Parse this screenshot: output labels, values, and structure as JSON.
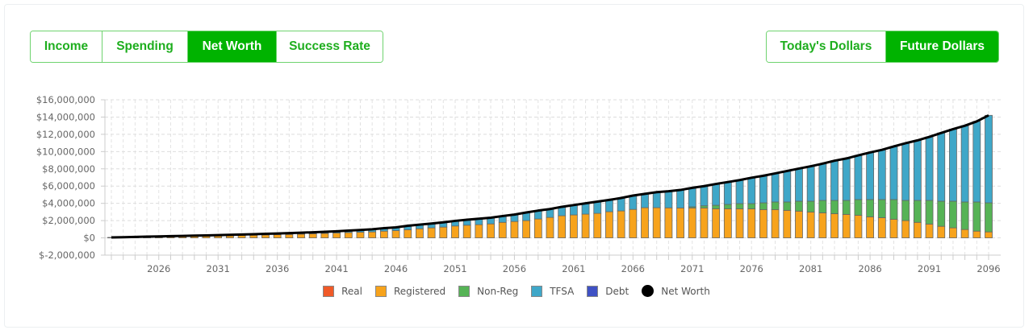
{
  "tabs": {
    "view": [
      {
        "label": "Income",
        "active": false
      },
      {
        "label": "Spending",
        "active": false
      },
      {
        "label": "Net Worth",
        "active": true
      },
      {
        "label": "Success Rate",
        "active": false
      }
    ],
    "currency": [
      {
        "label": "Today's Dollars",
        "active": false
      },
      {
        "label": "Future Dollars",
        "active": true
      }
    ]
  },
  "colors": {
    "accent": "#00b300",
    "Real": "#f05a28",
    "Registered": "#f7a31c",
    "Non-Reg": "#56b356",
    "TFSA": "#3fa7c8",
    "Debt": "#3f51c4",
    "Net Worth": "#000000"
  },
  "chart_data": {
    "type": "bar",
    "stacked": true,
    "title": "",
    "xlabel": "",
    "ylabel": "",
    "ylim": [
      -2000000,
      16000000
    ],
    "yticks": [
      -2000000,
      0,
      2000000,
      4000000,
      6000000,
      8000000,
      10000000,
      12000000,
      14000000,
      16000000
    ],
    "ytick_labels": [
      "$-2,000,000",
      "$0",
      "$2,000,000",
      "$4,000,000",
      "$6,000,000",
      "$8,000,000",
      "$10,000,000",
      "$12,000,000",
      "$14,000,000",
      "$16,000,000"
    ],
    "xrange": [
      2022,
      2096
    ],
    "xtick_labels": [
      "2026",
      "2031",
      "2036",
      "2041",
      "2046",
      "2051",
      "2056",
      "2061",
      "2066",
      "2071",
      "2076",
      "2081",
      "2086",
      "2091",
      "2096"
    ],
    "grid": true,
    "legend_position": "bottom",
    "legend": [
      "Real",
      "Registered",
      "Non-Reg",
      "TFSA",
      "Debt",
      "Net Worth"
    ],
    "series": [
      {
        "name": "Real",
        "type": "bar",
        "values": "all zero"
      },
      {
        "name": "Registered",
        "type": "bar",
        "values": [
          40000,
          60000,
          80000,
          100000,
          120000,
          140000,
          160000,
          180000,
          200000,
          220000,
          250000,
          280000,
          310000,
          340000,
          370000,
          400000,
          440000,
          480000,
          520000,
          560000,
          620000,
          650000,
          690000,
          780000,
          840000,
          940000,
          1060000,
          1160000,
          1250000,
          1380000,
          1470000,
          1530000,
          1620000,
          1800000,
          1900000,
          2000000,
          2190000,
          2370000,
          2560000,
          2660000,
          2750000,
          2840000,
          3030000,
          3120000,
          3300000,
          3500000,
          3500000,
          3480000,
          3470000,
          3470000,
          3470000,
          3370000,
          3370000,
          3370000,
          3370000,
          3280000,
          3280000,
          3190000,
          3100000,
          3000000,
          2900000,
          2800000,
          2720000,
          2620000,
          2440000,
          2340000,
          2160000,
          2000000,
          1800000,
          1600000,
          1340000,
          1160000,
          970000,
          780000,
          690000
        ]
      },
      {
        "name": "Non-Reg",
        "type": "bar",
        "values": [
          0,
          0,
          0,
          0,
          0,
          0,
          0,
          0,
          0,
          0,
          0,
          0,
          0,
          0,
          0,
          0,
          0,
          0,
          0,
          0,
          0,
          0,
          0,
          0,
          0,
          0,
          0,
          0,
          0,
          0,
          0,
          0,
          0,
          0,
          0,
          0,
          0,
          0,
          0,
          0,
          0,
          0,
          0,
          0,
          0,
          0,
          0,
          0,
          0,
          130000,
          250000,
          410000,
          510000,
          600000,
          600000,
          780000,
          880000,
          970000,
          1150000,
          1250000,
          1440000,
          1540000,
          1620000,
          1820000,
          2000000,
          2100000,
          2280000,
          2340000,
          2540000,
          2740000,
          2910000,
          3090000,
          3190000,
          3380000,
          3370000
        ]
      },
      {
        "name": "TFSA",
        "type": "bar",
        "values": [
          10000,
          20000,
          30000,
          40000,
          50000,
          60000,
          70000,
          80000,
          90000,
          100000,
          100000,
          110000,
          120000,
          130000,
          140000,
          150000,
          160000,
          170000,
          180000,
          200000,
          220000,
          270000,
          310000,
          340000,
          380000,
          460000,
          470000,
          500000,
          550000,
          590000,
          630000,
          690000,
          720000,
          730000,
          800000,
          940000,
          970000,
          970000,
          1040000,
          1140000,
          1250000,
          1360000,
          1370000,
          1500000,
          1600000,
          1600000,
          1800000,
          1920000,
          2080000,
          2200000,
          2280000,
          2470000,
          2590000,
          2730000,
          3000000,
          3140000,
          3310000,
          3590000,
          3780000,
          4050000,
          4260000,
          4600000,
          4860000,
          5120000,
          5460000,
          5760000,
          6160000,
          6630000,
          6960000,
          7360000,
          7910000,
          8350000,
          8840000,
          9340000,
          10140000
        ]
      },
      {
        "name": "Debt",
        "type": "bar",
        "values": "all zero"
      },
      {
        "name": "Net Worth",
        "type": "line",
        "values": [
          50000,
          80000,
          110000,
          140000,
          170000,
          200000,
          230000,
          260000,
          290000,
          320000,
          350000,
          390000,
          430000,
          470000,
          510000,
          550000,
          600000,
          650000,
          700000,
          760000,
          840000,
          920000,
          1000000,
          1120000,
          1220000,
          1400000,
          1530000,
          1660000,
          1800000,
          1970000,
          2100000,
          2220000,
          2340000,
          2530000,
          2700000,
          2940000,
          3160000,
          3340000,
          3600000,
          3800000,
          4000000,
          4200000,
          4400000,
          4620000,
          4900000,
          5100000,
          5300000,
          5400000,
          5550000,
          5800000,
          6000000,
          6250000,
          6470000,
          6700000,
          6970000,
          7200000,
          7470000,
          7750000,
          8030000,
          8300000,
          8600000,
          8940000,
          9200000,
          9560000,
          9900000,
          10200000,
          10600000,
          10970000,
          11300000,
          11700000,
          12160000,
          12600000,
          13000000,
          13500000,
          14200000
        ]
      }
    ]
  }
}
